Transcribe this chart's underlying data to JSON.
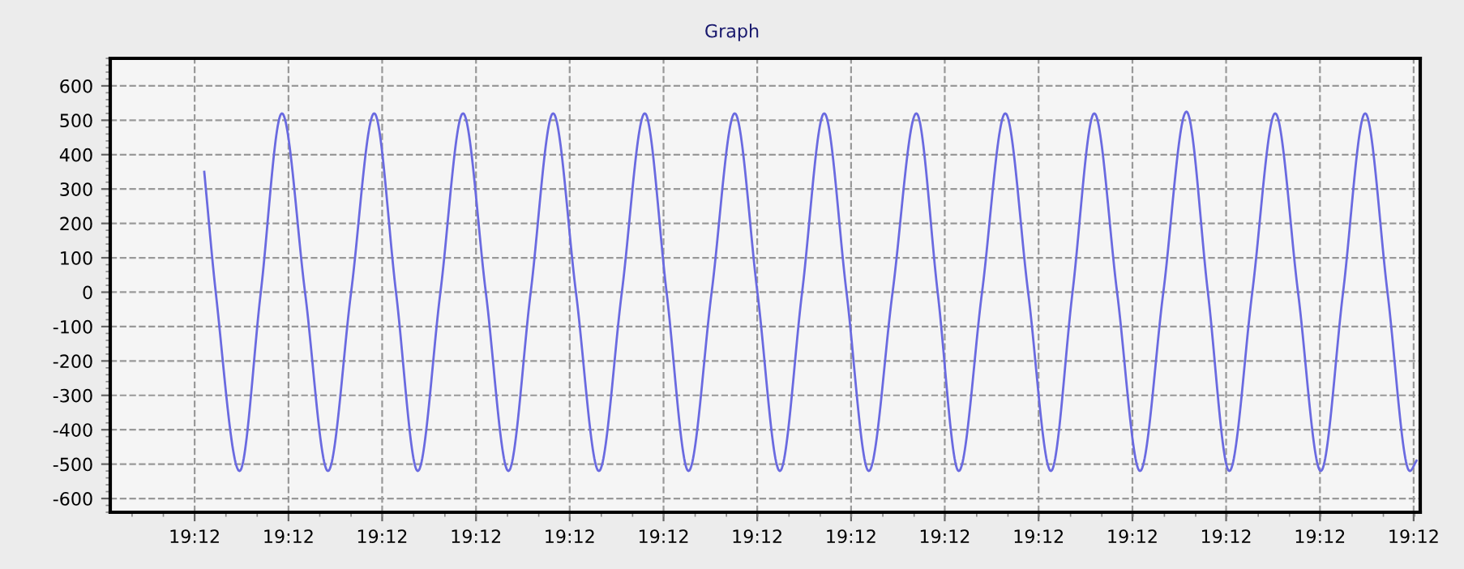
{
  "chart_data": {
    "type": "line",
    "title": "Graph",
    "xlim": [
      19.1995,
      19.207261
    ],
    "ylim": [
      -640,
      680
    ],
    "xticks": [
      {
        "value": 19.2,
        "label": "19:12"
      },
      {
        "value": 19.200556,
        "label": "19:12"
      },
      {
        "value": 19.201111,
        "label": "19:12"
      },
      {
        "value": 19.201667,
        "label": "19:12"
      },
      {
        "value": 19.202222,
        "label": "19:12"
      },
      {
        "value": 19.202778,
        "label": "19:12"
      },
      {
        "value": 19.203333,
        "label": "19:12"
      },
      {
        "value": 19.203889,
        "label": "19:12"
      },
      {
        "value": 19.204444,
        "label": "19:12"
      },
      {
        "value": 19.205,
        "label": "19:12"
      },
      {
        "value": 19.205556,
        "label": "19:12"
      },
      {
        "value": 19.206111,
        "label": "19:12"
      },
      {
        "value": 19.206667,
        "label": "19:12"
      },
      {
        "value": 19.207222,
        "label": "19:12"
      }
    ],
    "yticks": [
      -600,
      -500,
      -400,
      -300,
      -200,
      -100,
      0,
      100,
      200,
      300,
      400,
      500,
      600
    ],
    "grid": true,
    "legend": false,
    "marker": "none",
    "line_style": "solid",
    "series": [
      {
        "color": "#6a6ae0",
        "x": [
          19.200057,
          19.200125,
          19.200266,
          19.200392,
          19.200517,
          19.200654,
          19.20079,
          19.200927,
          19.201064,
          19.201193,
          19.201322,
          19.201456,
          19.20159,
          19.201725,
          19.201859,
          19.201991,
          19.202124,
          19.202259,
          19.202395,
          19.202531,
          19.202667,
          19.202796,
          19.202926,
          19.203063,
          19.2032,
          19.203334,
          19.203467,
          19.203599,
          19.20373,
          19.203862,
          19.203994,
          19.204135,
          19.204276,
          19.204402,
          19.204527,
          19.204665,
          19.204803,
          19.204938,
          19.205073,
          19.205201,
          19.20533,
          19.205465,
          19.205601,
          19.205739,
          19.205876,
          19.206003,
          19.20613,
          19.206266,
          19.206402,
          19.206537,
          19.206672,
          19.206804,
          19.206935,
          19.207067,
          19.207199,
          19.207239
        ],
        "values": [
          350,
          0,
          -520,
          0,
          520,
          0,
          -520,
          0,
          520,
          0,
          -520,
          0,
          520,
          0,
          -520,
          0,
          520,
          0,
          -520,
          0,
          520,
          0,
          -520,
          0,
          520,
          0,
          -520,
          0,
          520,
          0,
          -520,
          0,
          520,
          0,
          -520,
          0,
          520,
          0,
          -520,
          0,
          520,
          0,
          -520,
          0,
          525,
          0,
          -520,
          0,
          520,
          0,
          -520,
          0,
          520,
          0,
          -520,
          -490
        ]
      }
    ]
  }
}
